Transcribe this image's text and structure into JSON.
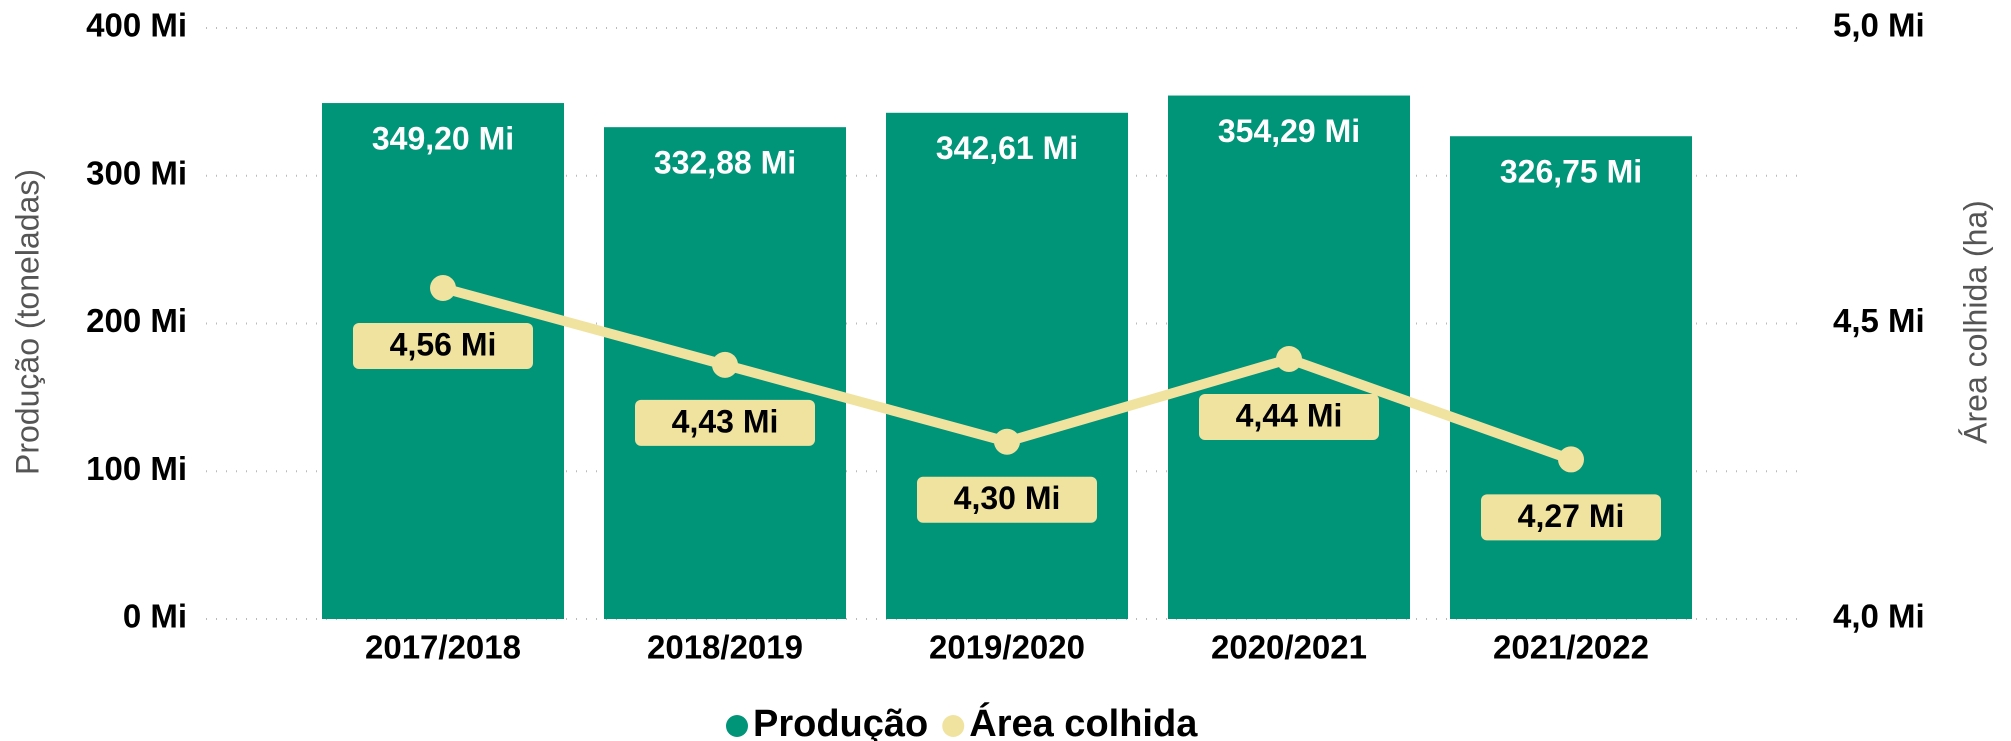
{
  "chart_data": {
    "type": "bar",
    "categories": [
      "2017/2018",
      "2018/2019",
      "2019/2020",
      "2020/2021",
      "2021/2022"
    ],
    "series": [
      {
        "name": "Produção",
        "color": "#009479",
        "type": "bar",
        "values": [
          349200000,
          332880000,
          342610000,
          354290000,
          326750000
        ],
        "value_labels": [
          "349,20 Mi",
          "332,88 Mi",
          "342,61 Mi",
          "354,29 Mi",
          "326,75 Mi"
        ]
      },
      {
        "name": "Área colhida",
        "color": "#f0e3a0",
        "type": "line",
        "axis": "y2",
        "values": [
          4560000,
          4430000,
          4300000,
          4440000,
          4270000
        ],
        "value_labels": [
          "4,56 Mi",
          "4,43 Mi",
          "4,30 Mi",
          "4,44 Mi",
          "4,27 Mi"
        ]
      }
    ],
    "ylabel": "Produção (toneladas)",
    "y2label": "Área colhida (ha)",
    "ylim": [
      0,
      400000000
    ],
    "yticks": [
      {
        "value": 0,
        "label": "0 Mi"
      },
      {
        "value": 100000000,
        "label": "100 Mi"
      },
      {
        "value": 200000000,
        "label": "200 Mi"
      },
      {
        "value": 300000000,
        "label": "300 Mi"
      },
      {
        "value": 400000000,
        "label": "400 Mi"
      }
    ],
    "y2lim": [
      4000000,
      5000000
    ],
    "y2ticks": [
      {
        "value": 4000000,
        "label": "4,0 Mi"
      },
      {
        "value": 4500000,
        "label": "4,5 Mi"
      },
      {
        "value": 5000000,
        "label": "5,0 Mi"
      }
    ],
    "grid": true,
    "legend": "bottom"
  }
}
